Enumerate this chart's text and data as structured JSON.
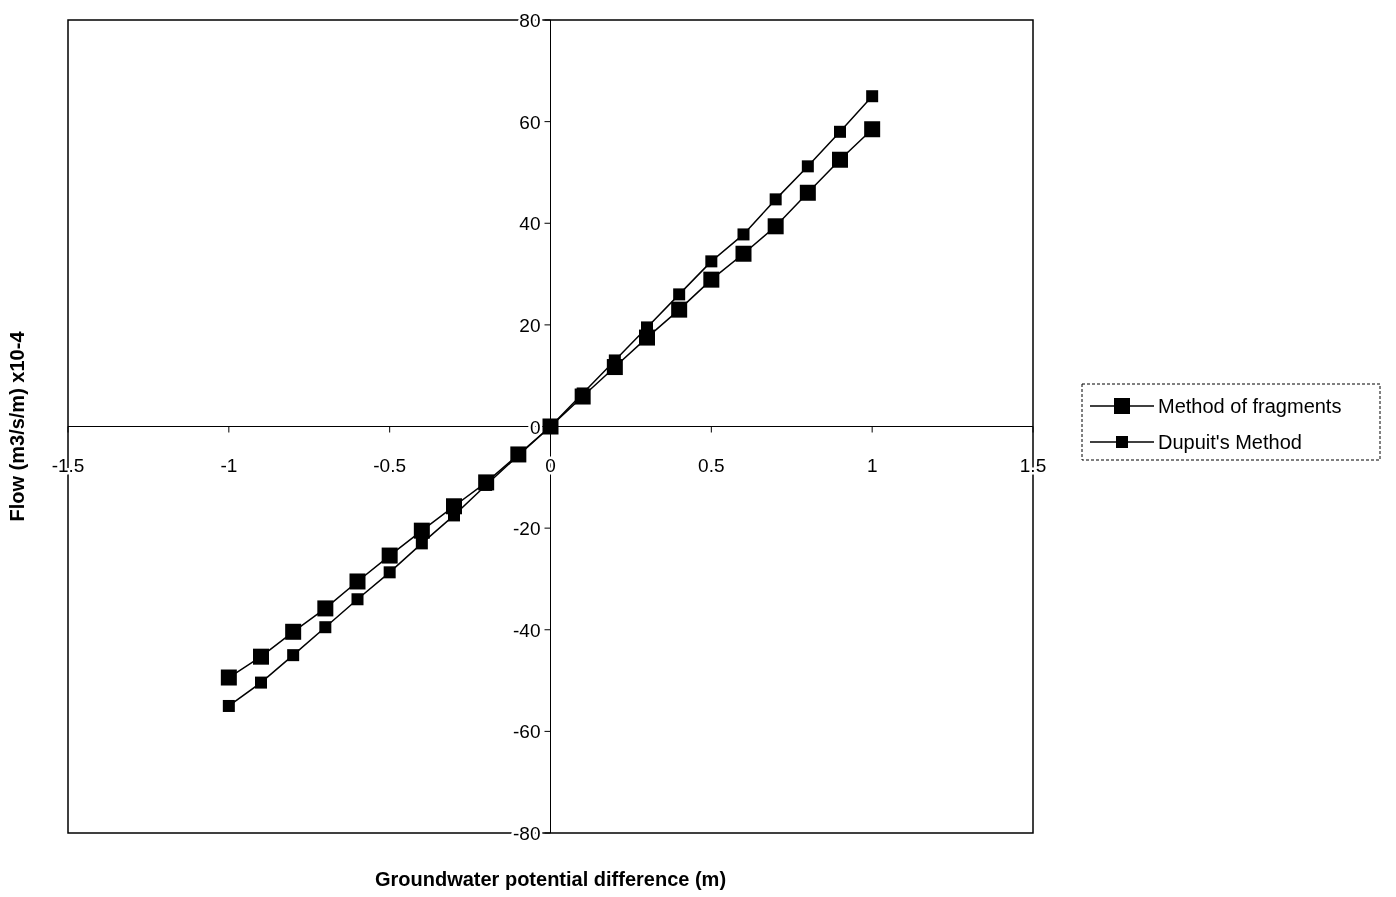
{
  "chart_data": {
    "type": "line",
    "xlabel": "Groundwater potential difference (m)",
    "ylabel": "Flow (m3/s/m) x10-4",
    "x": [
      -1,
      -0.9,
      -0.8,
      -0.7,
      -0.6,
      -0.5,
      -0.4,
      -0.3,
      -0.2,
      -0.1,
      0,
      0.1,
      0.2,
      0.3,
      0.4,
      0.5,
      0.6,
      0.7,
      0.8,
      0.9,
      1
    ],
    "series": [
      {
        "name": "Method of fragments",
        "color": "#000000",
        "values": [
          -49.4,
          -45.3,
          -40.4,
          -35.8,
          -30.5,
          -25.4,
          -20.5,
          -15.7,
          -11,
          -5.5,
          0,
          5.9,
          11.7,
          17.5,
          23,
          28.9,
          34,
          39.4,
          46,
          52.5,
          58.5
        ]
      },
      {
        "name": "Dupuit's Method",
        "color": "#000000",
        "values": [
          -55,
          -50.4,
          -45,
          -39.5,
          -34,
          -28.7,
          -23,
          -17.5,
          -11.5,
          -5.7,
          0,
          6.5,
          13,
          19.5,
          26,
          32.5,
          37.8,
          44.7,
          51.2,
          58,
          65
        ]
      }
    ],
    "xlim": [
      -1.5,
      1.5
    ],
    "xticks": [
      -1.5,
      -1,
      -0.5,
      0,
      0.5,
      1,
      1.5
    ],
    "ylim": [
      -80,
      80
    ],
    "yticks": [
      -80,
      -60,
      -40,
      -20,
      0,
      20,
      40,
      60,
      80
    ],
    "grid": false,
    "legend": "right",
    "marker": "square",
    "line_style": "solid"
  }
}
